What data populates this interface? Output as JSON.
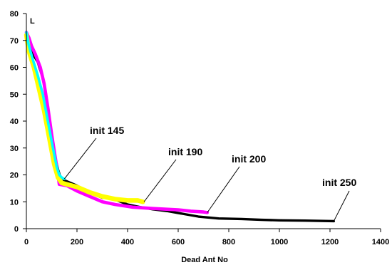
{
  "chart_data": {
    "type": "line",
    "xlabel": "Dead Ant No",
    "ylabel": "L",
    "xlim": [
      0,
      1400
    ],
    "ylim": [
      0,
      80
    ],
    "x_ticks": [
      0,
      200,
      400,
      600,
      800,
      1000,
      1200,
      1400
    ],
    "y_ticks": [
      0,
      10,
      20,
      30,
      40,
      50,
      60,
      70,
      80
    ],
    "grid": false,
    "legend": "none",
    "series": [
      {
        "color": "#000000",
        "stroke_width": 3.4,
        "x": [
          0,
          10,
          25,
          45,
          65,
          80,
          95,
          110,
          125,
          140,
          150,
          200,
          260,
          300,
          330,
          360,
          400,
          450,
          500,
          560,
          620,
          680,
          760,
          850,
          930,
          1000,
          1100,
          1215
        ],
        "y": [
          73,
          70,
          65,
          62,
          56,
          48,
          38,
          28,
          22,
          17.5,
          18,
          16,
          13,
          11.5,
          11.5,
          10.5,
          9,
          8,
          7.2,
          6.5,
          5.5,
          4.5,
          3.8,
          3.6,
          3.3,
          3.1,
          3,
          2.8
        ]
      },
      {
        "color": "#ff00ff",
        "stroke_width": 4.6,
        "x": [
          0,
          10,
          20,
          35,
          55,
          70,
          85,
          100,
          115,
          125,
          130,
          160,
          200,
          250,
          300,
          350,
          420,
          500,
          600,
          650,
          700,
          715
        ],
        "y": [
          73,
          71,
          68,
          65,
          60,
          54,
          45,
          35,
          26,
          20,
          16.5,
          16,
          14,
          12,
          10,
          9,
          8,
          7.5,
          7,
          6.5,
          6.2,
          6
        ]
      },
      {
        "color": "#ffff00",
        "stroke_width": 6.5,
        "x": [
          0,
          10,
          30,
          50,
          70,
          90,
          110,
          125,
          140,
          160,
          200,
          250,
          300,
          350,
          400,
          440,
          460
        ],
        "y": [
          72,
          66,
          60,
          52,
          44,
          34,
          24,
          19,
          17,
          16.5,
          15.5,
          13.5,
          12,
          11,
          10.5,
          10.5,
          10
        ]
      },
      {
        "color": "#00ffff",
        "stroke_width": 3.6,
        "x": [
          0,
          10,
          25,
          45,
          65,
          85,
          105,
          120,
          130,
          140,
          150
        ],
        "y": [
          73,
          68,
          63,
          57,
          50,
          40,
          30,
          23,
          20,
          19,
          18.5
        ]
      }
    ],
    "annotations": [
      {
        "text": "init 145",
        "x": 150,
        "y": 18.5
      },
      {
        "text": "init 190",
        "x": 465,
        "y": 10
      },
      {
        "text": "init 200",
        "x": 715,
        "y": 6
      },
      {
        "text": "init 250",
        "x": 1215,
        "y": 2.8
      }
    ]
  }
}
